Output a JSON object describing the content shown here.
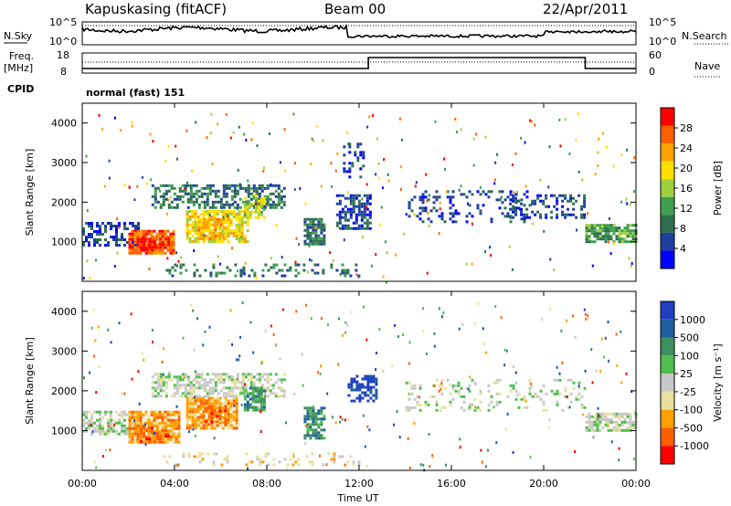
{
  "header": {
    "station": "Kapuskasing (fitACF)",
    "beam": "Beam 00",
    "date": "22/Apr/2011",
    "cpid_label": "CPID",
    "cpid_value": "normal (fast) 151"
  },
  "top_panels": {
    "nsky_label": "N.Sky",
    "nsearch_label": "N.Search",
    "nsky_ticks": [
      "10^5",
      "10^0"
    ],
    "nsearch_ticks": [
      "10^5",
      "10^0"
    ],
    "freq_label_1": "Freq.",
    "freq_label_2": "[MHz]",
    "freq_ticks": [
      "18",
      "8"
    ],
    "nave_label": "Nave",
    "nave_ticks": [
      "60",
      "0"
    ]
  },
  "colors": {
    "power": [
      "#0000ff",
      "#1f3f9f",
      "#2e6f4f",
      "#3fa04f",
      "#9fcf3f",
      "#ffdf00",
      "#ff9f00",
      "#ff5f00",
      "#ff0000"
    ],
    "velocity": [
      "#1f3fbf",
      "#1f5fa0",
      "#3f8f5f",
      "#4fbf4f",
      "#c8c8c8",
      "#e8e0a0",
      "#ff9f00",
      "#ff5f00",
      "#ff0000"
    ]
  },
  "chart_data": [
    {
      "type": "heatmap",
      "name": "power",
      "ylabel": "Slant Range [km]",
      "xlabel": "Time UT",
      "x_ticks": [
        "00:00",
        "04:00",
        "08:00",
        "12:00",
        "16:00",
        "20:00",
        "00:00"
      ],
      "y_ticks": [
        "1000",
        "2000",
        "3000",
        "4000"
      ],
      "ylim": [
        0,
        4500
      ],
      "xlim_hours": [
        0,
        24
      ],
      "colorbar_label": "Power [dB]",
      "colorbar_ticks": [
        "4",
        "8",
        "12",
        "16",
        "20",
        "24",
        "28"
      ],
      "blobs": [
        {
          "t0": 0.0,
          "t1": 2.5,
          "r0": 900,
          "r1": 1500,
          "level": 1,
          "density": 0.55
        },
        {
          "t0": 2.0,
          "t1": 4.0,
          "r0": 650,
          "r1": 1300,
          "level": 7,
          "density": 0.85
        },
        {
          "t0": 2.5,
          "t1": 3.8,
          "r0": 750,
          "r1": 1100,
          "level": 8,
          "density": 0.7
        },
        {
          "t0": 4.5,
          "t1": 7.2,
          "r0": 950,
          "r1": 1800,
          "level": 5,
          "density": 0.8
        },
        {
          "t0": 5.0,
          "t1": 6.2,
          "r0": 1050,
          "r1": 1600,
          "level": 6,
          "density": 0.6
        },
        {
          "t0": 3.0,
          "t1": 8.8,
          "r0": 1850,
          "r1": 2450,
          "level": 2,
          "density": 0.55
        },
        {
          "t0": 7.0,
          "t1": 8.0,
          "r0": 1550,
          "r1": 2200,
          "level": 4,
          "density": 0.7
        },
        {
          "t0": 9.6,
          "t1": 10.6,
          "r0": 900,
          "r1": 1600,
          "level": 2,
          "density": 0.7
        },
        {
          "t0": 11.0,
          "t1": 12.6,
          "r0": 1300,
          "r1": 2200,
          "level": 1,
          "density": 0.6
        },
        {
          "t0": 11.3,
          "t1": 12.3,
          "r0": 2600,
          "r1": 3500,
          "level": 1,
          "density": 0.3
        },
        {
          "t0": 14.0,
          "t1": 19.5,
          "r0": 1500,
          "r1": 2300,
          "level": 1,
          "density": 0.22
        },
        {
          "t0": 18.5,
          "t1": 21.8,
          "r0": 1550,
          "r1": 2200,
          "level": 1,
          "density": 0.35
        },
        {
          "t0": 21.8,
          "t1": 24.0,
          "r0": 950,
          "r1": 1450,
          "level": 3,
          "density": 0.75
        },
        {
          "t0": 3.5,
          "t1": 12.0,
          "r0": 100,
          "r1": 450,
          "level": 2,
          "density": 0.25
        }
      ]
    },
    {
      "type": "heatmap",
      "name": "velocity",
      "ylabel": "Slant Range [km]",
      "xlabel": "Time UT",
      "x_ticks": [
        "00:00",
        "04:00",
        "08:00",
        "12:00",
        "16:00",
        "20:00",
        "00:00"
      ],
      "y_ticks": [
        "1000",
        "2000",
        "3000",
        "4000"
      ],
      "ylim": [
        0,
        4500
      ],
      "xlim_hours": [
        0,
        24
      ],
      "colorbar_label": "Velocity [m s⁻¹]",
      "colorbar_ticks": [
        "1000",
        "500",
        "100",
        "25",
        "-25",
        "-100",
        "-500",
        "-1000"
      ],
      "blobs": [
        {
          "t0": 0.0,
          "t1": 2.5,
          "r0": 900,
          "r1": 1500,
          "level": 4,
          "density": 0.6
        },
        {
          "t0": 2.0,
          "t1": 4.2,
          "r0": 650,
          "r1": 1500,
          "level": 6,
          "density": 0.9
        },
        {
          "t0": 2.5,
          "t1": 3.8,
          "r0": 700,
          "r1": 1100,
          "level": 7,
          "density": 0.6
        },
        {
          "t0": 4.5,
          "t1": 6.8,
          "r0": 1000,
          "r1": 1850,
          "level": 6,
          "density": 0.85
        },
        {
          "t0": 5.2,
          "t1": 6.3,
          "r0": 1100,
          "r1": 1600,
          "level": 7,
          "density": 0.5
        },
        {
          "t0": 3.0,
          "t1": 8.8,
          "r0": 1850,
          "r1": 2450,
          "level": 4,
          "density": 0.6
        },
        {
          "t0": 7.0,
          "t1": 8.0,
          "r0": 1450,
          "r1": 2100,
          "level": 2,
          "density": 0.8
        },
        {
          "t0": 9.6,
          "t1": 10.6,
          "r0": 800,
          "r1": 1600,
          "level": 2,
          "density": 0.7
        },
        {
          "t0": 11.5,
          "t1": 12.8,
          "r0": 1700,
          "r1": 2400,
          "level": 0,
          "density": 0.55
        },
        {
          "t0": 14.0,
          "t1": 21.8,
          "r0": 1500,
          "r1": 2300,
          "level": 4,
          "density": 0.2
        },
        {
          "t0": 21.8,
          "t1": 24.0,
          "r0": 950,
          "r1": 1450,
          "level": 4,
          "density": 0.75
        },
        {
          "t0": 3.5,
          "t1": 12.0,
          "r0": 100,
          "r1": 450,
          "level": 5,
          "density": 0.2
        }
      ]
    }
  ]
}
